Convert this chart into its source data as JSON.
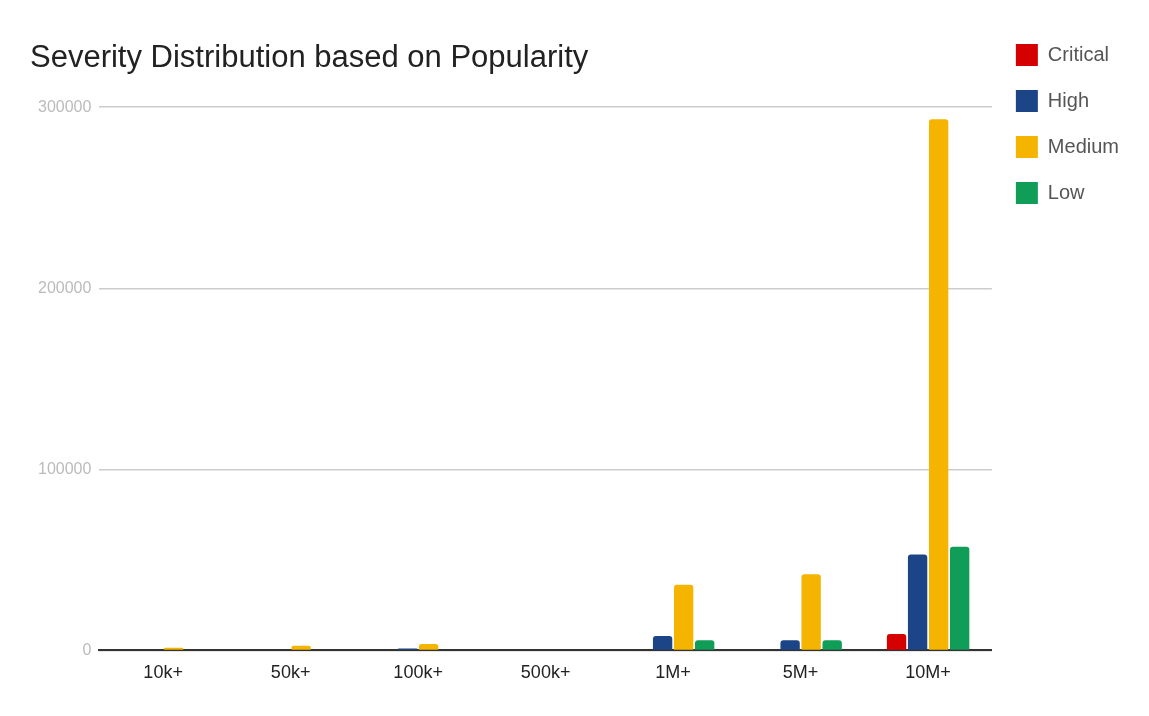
{
  "chart_data": {
    "type": "bar",
    "title": "Severity Distribution based on Popularity",
    "categories": [
      "10k+",
      "50k+",
      "100k+",
      "500k+",
      "1M+",
      "5M+",
      "10M+"
    ],
    "series": [
      {
        "name": "Critical",
        "color": "#d50000",
        "values": [
          0,
          0,
          0,
          0,
          0,
          0,
          9000
        ]
      },
      {
        "name": "High",
        "color": "#1c4587",
        "values": [
          0,
          0,
          1000,
          0,
          8000,
          5600,
          52900
        ]
      },
      {
        "name": "Medium",
        "color": "#f4b400",
        "values": [
          1500,
          2500,
          3500,
          0,
          36300,
          42000,
          293400
        ]
      },
      {
        "name": "Low",
        "color": "#0f9d58",
        "values": [
          0,
          0,
          0,
          0,
          5600,
          5600,
          57300
        ]
      }
    ],
    "ylim": [
      0,
      300000
    ],
    "yticks": [
      0,
      100000,
      200000,
      300000
    ],
    "grid": "y",
    "legend": "top right"
  }
}
